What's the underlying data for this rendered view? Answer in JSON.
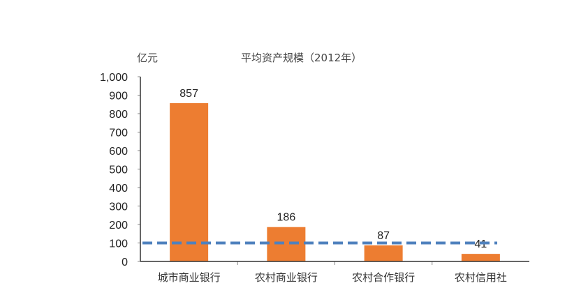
{
  "chart_data": {
    "type": "bar",
    "title": "平均资产规模（2012年）",
    "ylabel": "亿元",
    "xlabel": "",
    "categories": [
      "城市商业银行",
      "农村商业银行",
      "农村合作银行",
      "农村信用社"
    ],
    "values": [
      857,
      186,
      87,
      41
    ],
    "value_labels": [
      "857",
      "186",
      "87",
      "41"
    ],
    "ylim": [
      0,
      1000
    ],
    "yticks": [
      0,
      100,
      200,
      300,
      400,
      500,
      600,
      700,
      800,
      900,
      1000
    ],
    "ytick_labels": [
      "0",
      "100",
      "200",
      "300",
      "400",
      "500",
      "600",
      "700",
      "800",
      "900",
      "1,000"
    ],
    "reference_line": {
      "value": 100,
      "style": "dashed",
      "color": "#4F81BD"
    },
    "bar_color": "#ED7D31",
    "grid": false,
    "legend": null
  }
}
